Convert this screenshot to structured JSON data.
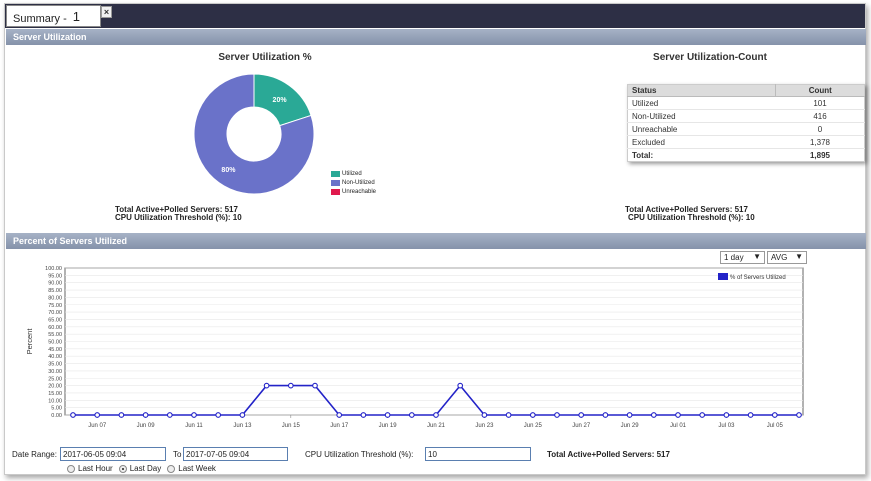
{
  "tab": {
    "label": "Summary -",
    "number": "1",
    "close": "×"
  },
  "section1": {
    "title": "Server Utilization"
  },
  "section2": {
    "title": "Percent of Servers Utilized"
  },
  "pie": {
    "title": "Server Utilization %",
    "slices": [
      {
        "name": "Utilized",
        "value": 20,
        "label": "20%",
        "color": "#2aa996"
      },
      {
        "name": "Non-Utilized",
        "value": 80,
        "label": "80%",
        "color": "#6a72c9"
      },
      {
        "name": "Unreachable",
        "value": 0,
        "label": "",
        "color": "#e0194d"
      }
    ],
    "info_servers": "Total Active+Polled Servers: 517",
    "info_threshold": "CPU Utilization Threshold (%): 10"
  },
  "count": {
    "title": "Server Utilization-Count",
    "headers": [
      "Status",
      "Count"
    ],
    "rows": [
      {
        "status": "Utilized",
        "count": "101"
      },
      {
        "status": "Non-Utilized",
        "count": "416"
      },
      {
        "status": "Unreachable",
        "count": "0"
      },
      {
        "status": "Excluded",
        "count": "1,378"
      }
    ],
    "total": {
      "status": "Total:",
      "count": "1,895"
    },
    "info_servers": "Total Active+Polled Servers: 517",
    "info_threshold": "CPU Utilization Threshold (%): 10"
  },
  "controls": {
    "period": "1 day",
    "aggregate": "AVG",
    "arrow": "▼"
  },
  "chart_data": {
    "type": "line",
    "ylabel": "Percent",
    "ylim": [
      0,
      100
    ],
    "yticks": [
      "0.00",
      "5.00",
      "10.00",
      "15.00",
      "20.00",
      "25.00",
      "30.00",
      "35.00",
      "40.00",
      "45.00",
      "50.00",
      "55.00",
      "60.00",
      "65.00",
      "70.00",
      "75.00",
      "80.00",
      "85.00",
      "90.00",
      "95.00",
      "100.00"
    ],
    "xtick_labels": [
      "Jun 07",
      "Jun 09",
      "Jun 11",
      "Jun 13",
      "Jun 15",
      "Jun 17",
      "Jun 19",
      "Jun 21",
      "Jun 23",
      "Jun 25",
      "Jun 27",
      "Jun 29",
      "Jul 01",
      "Jul 03",
      "Jul 05"
    ],
    "series": [
      {
        "name": "% of Servers Utilized",
        "color": "#2323c8",
        "values": [
          0,
          0,
          0,
          0,
          0,
          0,
          0,
          0,
          20,
          20,
          20,
          0,
          0,
          0,
          0,
          0,
          20,
          0,
          0,
          0,
          0,
          0,
          0,
          0,
          0,
          0,
          0,
          0,
          0,
          0,
          0
        ]
      }
    ]
  },
  "bottom": {
    "date_range_label": "Date Range:",
    "from": "2017-06-05 09:04",
    "to_label": "To",
    "to": "2017-07-05 09:04",
    "threshold_label": "CPU Utilization Threshold (%):",
    "threshold": "10",
    "total_label": "Total Active+Polled Servers: 517",
    "radios": [
      {
        "label": "Last Hour",
        "checked": false
      },
      {
        "label": "Last Day",
        "checked": true
      },
      {
        "label": "Last Week",
        "checked": false
      }
    ]
  }
}
